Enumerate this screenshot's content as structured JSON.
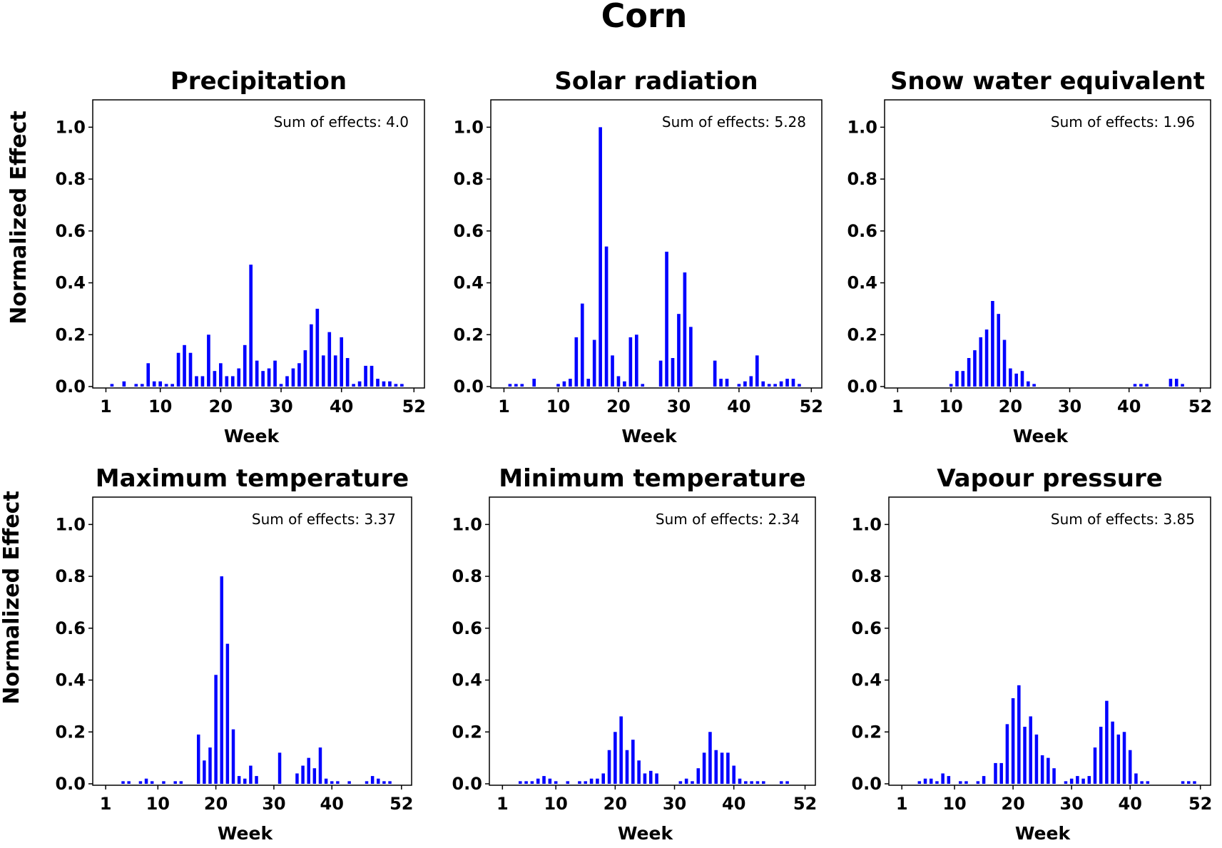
{
  "title": "Corn",
  "ylabel": "Normalized Effect",
  "colors": {
    "bar": "#0000ff",
    "axes": "#000000"
  },
  "chart_data": [
    {
      "type": "bar",
      "title": "Precipitation",
      "xlabel": "Week",
      "ylabel": "Normalized Effect",
      "annotation": "Sum of effects: 4.0",
      "ylim": [
        0,
        1.1
      ],
      "xticks": [
        "1",
        "10",
        "20",
        "30",
        "40",
        "52"
      ],
      "yticks": [
        "0.0",
        "0.2",
        "0.4",
        "0.6",
        "0.8",
        "1.0"
      ],
      "x": [
        1,
        2,
        3,
        4,
        5,
        6,
        7,
        8,
        9,
        10,
        11,
        12,
        13,
        14,
        15,
        16,
        17,
        18,
        19,
        20,
        21,
        22,
        23,
        24,
        25,
        26,
        27,
        28,
        29,
        30,
        31,
        32,
        33,
        34,
        35,
        36,
        37,
        38,
        39,
        40,
        41,
        42,
        43,
        44,
        45,
        46,
        47,
        48,
        49,
        50,
        51,
        52
      ],
      "values": [
        0,
        0.01,
        0,
        0.02,
        0,
        0.01,
        0.01,
        0.09,
        0.02,
        0.02,
        0.01,
        0.01,
        0.13,
        0.16,
        0.13,
        0.04,
        0.04,
        0.2,
        0.06,
        0.09,
        0.04,
        0.04,
        0.07,
        0.16,
        0.47,
        0.1,
        0.06,
        0.07,
        0.1,
        0.01,
        0.04,
        0.07,
        0.09,
        0.14,
        0.24,
        0.3,
        0.12,
        0.21,
        0.12,
        0.19,
        0.11,
        0.01,
        0.02,
        0.08,
        0.08,
        0.03,
        0.02,
        0.02,
        0.01,
        0.01,
        0,
        0
      ]
    },
    {
      "type": "bar",
      "title": "Solar radiation",
      "xlabel": "Week",
      "ylabel": "Normalized Effect",
      "annotation": "Sum of effects: 5.28",
      "ylim": [
        0,
        1.1
      ],
      "xticks": [
        "1",
        "10",
        "20",
        "30",
        "40",
        "52"
      ],
      "yticks": [
        "0.0",
        "0.2",
        "0.4",
        "0.6",
        "0.8",
        "1.0"
      ],
      "x": [
        1,
        2,
        3,
        4,
        5,
        6,
        7,
        8,
        9,
        10,
        11,
        12,
        13,
        14,
        15,
        16,
        17,
        18,
        19,
        20,
        21,
        22,
        23,
        24,
        25,
        26,
        27,
        28,
        29,
        30,
        31,
        32,
        33,
        34,
        35,
        36,
        37,
        38,
        39,
        40,
        41,
        42,
        43,
        44,
        45,
        46,
        47,
        48,
        49,
        50,
        51,
        52
      ],
      "values": [
        0,
        0.01,
        0.01,
        0.01,
        0,
        0.03,
        0,
        0,
        0,
        0.01,
        0.02,
        0.03,
        0.19,
        0.32,
        0.03,
        0.18,
        1.0,
        0.54,
        0.12,
        0.04,
        0.02,
        0.19,
        0.2,
        0.01,
        0,
        0,
        0.1,
        0.52,
        0.11,
        0.28,
        0.44,
        0.23,
        0,
        0,
        0,
        0.1,
        0.03,
        0.03,
        0,
        0.01,
        0.02,
        0.04,
        0.12,
        0.02,
        0.01,
        0.01,
        0.02,
        0.03,
        0.03,
        0.01,
        0,
        0
      ]
    },
    {
      "type": "bar",
      "title": "Snow water equivalent",
      "xlabel": "Week",
      "ylabel": "Normalized Effect",
      "annotation": "Sum of effects: 1.96",
      "ylim": [
        0,
        1.1
      ],
      "xticks": [
        "1",
        "10",
        "20",
        "30",
        "40",
        "52"
      ],
      "yticks": [
        "0.0",
        "0.2",
        "0.4",
        "0.6",
        "0.8",
        "1.0"
      ],
      "x": [
        1,
        2,
        3,
        4,
        5,
        6,
        7,
        8,
        9,
        10,
        11,
        12,
        13,
        14,
        15,
        16,
        17,
        18,
        19,
        20,
        21,
        22,
        23,
        24,
        25,
        26,
        27,
        28,
        29,
        30,
        31,
        32,
        33,
        34,
        35,
        36,
        37,
        38,
        39,
        40,
        41,
        42,
        43,
        44,
        45,
        46,
        47,
        48,
        49,
        50,
        51,
        52
      ],
      "values": [
        0,
        0,
        0,
        0,
        0,
        0,
        0,
        0,
        0,
        0.01,
        0.06,
        0.06,
        0.11,
        0.14,
        0.19,
        0.22,
        0.33,
        0.28,
        0.18,
        0.07,
        0.05,
        0.06,
        0.02,
        0.01,
        0,
        0,
        0,
        0,
        0,
        0,
        0,
        0,
        0,
        0,
        0,
        0,
        0,
        0,
        0,
        0,
        0.01,
        0.01,
        0.01,
        0,
        0,
        0,
        0.03,
        0.03,
        0.01,
        0,
        0,
        0
      ]
    },
    {
      "type": "bar",
      "title": "Maximum temperature",
      "xlabel": "Week",
      "ylabel": "Normalized Effect",
      "annotation": "Sum of effects: 3.37",
      "ylim": [
        0,
        1.1
      ],
      "xticks": [
        "1",
        "10",
        "20",
        "30",
        "40",
        "52"
      ],
      "yticks": [
        "0.0",
        "0.2",
        "0.4",
        "0.6",
        "0.8",
        "1.0"
      ],
      "x": [
        1,
        2,
        3,
        4,
        5,
        6,
        7,
        8,
        9,
        10,
        11,
        12,
        13,
        14,
        15,
        16,
        17,
        18,
        19,
        20,
        21,
        22,
        23,
        24,
        25,
        26,
        27,
        28,
        29,
        30,
        31,
        32,
        33,
        34,
        35,
        36,
        37,
        38,
        39,
        40,
        41,
        42,
        43,
        44,
        45,
        46,
        47,
        48,
        49,
        50,
        51,
        52
      ],
      "values": [
        0,
        0,
        0,
        0.01,
        0.01,
        0,
        0.01,
        0.02,
        0.01,
        0,
        0.01,
        0,
        0.01,
        0.01,
        0,
        0,
        0.19,
        0.09,
        0.14,
        0.42,
        0.8,
        0.54,
        0.21,
        0.03,
        0.02,
        0.07,
        0.03,
        0,
        0,
        0,
        0.12,
        0,
        0,
        0.04,
        0.07,
        0.1,
        0.06,
        0.14,
        0.02,
        0.01,
        0.01,
        0,
        0.01,
        0,
        0,
        0.01,
        0.03,
        0.02,
        0.01,
        0.01,
        0,
        0
      ]
    },
    {
      "type": "bar",
      "title": "Minimum temperature",
      "xlabel": "Week",
      "ylabel": "Normalized Effect",
      "annotation": "Sum of effects: 2.34",
      "ylim": [
        0,
        1.1
      ],
      "xticks": [
        "1",
        "10",
        "20",
        "30",
        "40",
        "52"
      ],
      "yticks": [
        "0.0",
        "0.2",
        "0.4",
        "0.6",
        "0.8",
        "1.0"
      ],
      "x": [
        1,
        2,
        3,
        4,
        5,
        6,
        7,
        8,
        9,
        10,
        11,
        12,
        13,
        14,
        15,
        16,
        17,
        18,
        19,
        20,
        21,
        22,
        23,
        24,
        25,
        26,
        27,
        28,
        29,
        30,
        31,
        32,
        33,
        34,
        35,
        36,
        37,
        38,
        39,
        40,
        41,
        42,
        43,
        44,
        45,
        46,
        47,
        48,
        49,
        50,
        51,
        52
      ],
      "values": [
        0,
        0,
        0,
        0.01,
        0.01,
        0.01,
        0.02,
        0.03,
        0.02,
        0.01,
        0,
        0.01,
        0,
        0.01,
        0.01,
        0.02,
        0.02,
        0.04,
        0.13,
        0.2,
        0.26,
        0.13,
        0.17,
        0.09,
        0.04,
        0.05,
        0.04,
        0,
        0,
        0,
        0.01,
        0.02,
        0.01,
        0.06,
        0.12,
        0.2,
        0.13,
        0.12,
        0.12,
        0.07,
        0.02,
        0.01,
        0.01,
        0.01,
        0.01,
        0,
        0,
        0.01,
        0.01,
        0,
        0,
        0
      ]
    },
    {
      "type": "bar",
      "title": "Vapour pressure",
      "xlabel": "Week",
      "ylabel": "Normalized Effect",
      "annotation": "Sum of effects: 3.85",
      "ylim": [
        0,
        1.1
      ],
      "xticks": [
        "1",
        "10",
        "20",
        "30",
        "40",
        "52"
      ],
      "yticks": [
        "0.0",
        "0.2",
        "0.4",
        "0.6",
        "0.8",
        "1.0"
      ],
      "x": [
        1,
        2,
        3,
        4,
        5,
        6,
        7,
        8,
        9,
        10,
        11,
        12,
        13,
        14,
        15,
        16,
        17,
        18,
        19,
        20,
        21,
        22,
        23,
        24,
        25,
        26,
        27,
        28,
        29,
        30,
        31,
        32,
        33,
        34,
        35,
        36,
        37,
        38,
        39,
        40,
        41,
        42,
        43,
        44,
        45,
        46,
        47,
        48,
        49,
        50,
        51,
        52
      ],
      "values": [
        0,
        0,
        0,
        0.01,
        0.02,
        0.02,
        0.01,
        0.04,
        0.03,
        0,
        0.01,
        0.01,
        0,
        0.01,
        0.03,
        0,
        0.08,
        0.08,
        0.23,
        0.33,
        0.38,
        0.22,
        0.26,
        0.19,
        0.11,
        0.1,
        0.06,
        0,
        0.01,
        0.02,
        0.03,
        0.02,
        0.03,
        0.14,
        0.22,
        0.32,
        0.24,
        0.19,
        0.2,
        0.13,
        0.04,
        0.01,
        0.01,
        0,
        0,
        0,
        0,
        0,
        0.01,
        0.01,
        0.01,
        0
      ]
    }
  ]
}
